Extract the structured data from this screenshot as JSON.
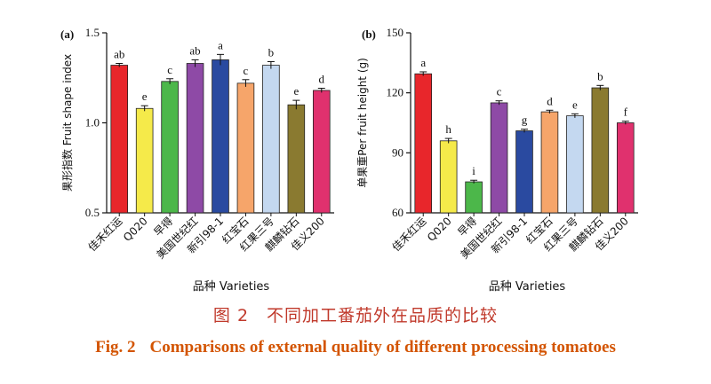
{
  "chart_data": [
    {
      "type": "bar",
      "panel_label": "(a)",
      "ylabel": "果形指数 Fruit shape index",
      "xlabel": "品种 Varieties",
      "ylim": [
        0.5,
        1.5
      ],
      "yticks": [
        "0.5",
        "1.0",
        "1.5"
      ],
      "categories": [
        "佳禾红运",
        "Q020",
        "早得",
        "美国世纪红",
        "新引98-1",
        "红宝石",
        "红果三号",
        "麒麟钻石",
        "佳义200"
      ],
      "values": [
        1.32,
        1.08,
        1.23,
        1.33,
        1.35,
        1.22,
        1.32,
        1.1,
        1.18
      ],
      "errors": [
        0.01,
        0.015,
        0.015,
        0.02,
        0.03,
        0.02,
        0.02,
        0.025,
        0.012
      ],
      "letters": [
        "ab",
        "e",
        "c",
        "ab",
        "a",
        "c",
        "b",
        "e",
        "d"
      ],
      "colors": [
        "#e8262b",
        "#f5ea4a",
        "#4cb74a",
        "#8e4aa6",
        "#2a4aa0",
        "#f6a56a",
        "#c4d8f0",
        "#8a7a30",
        "#e0316e"
      ]
    },
    {
      "type": "bar",
      "panel_label": "(b)",
      "ylabel": "单果重Per fruit height (g)",
      "xlabel": "品种 Varieties",
      "ylim": [
        60,
        150
      ],
      "yticks": [
        "60",
        "90",
        "120",
        "150"
      ],
      "categories": [
        "佳禾红运",
        "Q020",
        "早得",
        "美国世纪红",
        "新引98-1",
        "红宝石",
        "红果三号",
        "麒麟钻石",
        "佳义200"
      ],
      "values": [
        129.5,
        96,
        75.5,
        115,
        101,
        110.5,
        108.5,
        122.5,
        105
      ],
      "errors": [
        1.0,
        1.2,
        0.8,
        1.0,
        0.8,
        0.8,
        1.0,
        1.2,
        0.8
      ],
      "letters": [
        "a",
        "h",
        "i",
        "c",
        "g",
        "d",
        "e",
        "b",
        "f"
      ],
      "colors": [
        "#e8262b",
        "#f5ea4a",
        "#4cb74a",
        "#8e4aa6",
        "#2a4aa0",
        "#f6a56a",
        "#c4d8f0",
        "#8a7a30",
        "#e0316e"
      ]
    }
  ],
  "caption": {
    "chinese": "图 2　不同加工番茄外在品质的比较",
    "fig_label": "Fig. 2",
    "english": "Comparisons of external quality of different processing tomatoes"
  }
}
